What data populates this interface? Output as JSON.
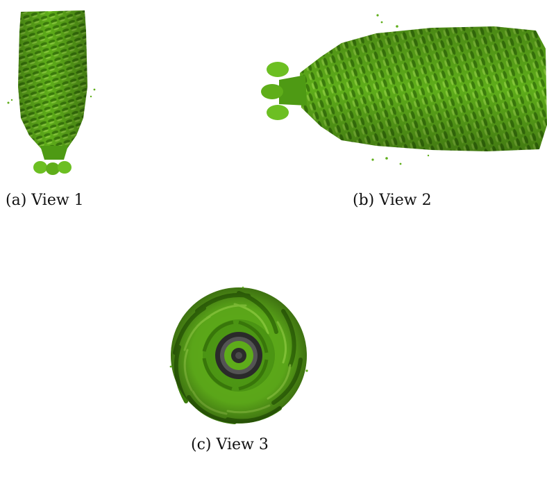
{
  "figure": {
    "panels": [
      {
        "id": "a",
        "caption": "(a) View 1",
        "view": "side view of helical filament (vertical)"
      },
      {
        "id": "b",
        "caption": "(b) View 2",
        "view": "side view of helical filament (horizontal)"
      },
      {
        "id": "c",
        "caption": "(c) View 3",
        "view": "top-down view of helical filament"
      }
    ],
    "colors": {
      "surface": "#5fae1a",
      "surface_dark": "#3a7a0a",
      "surface_light": "#8fd040",
      "core": "#2b2b2b",
      "background": "#ffffff"
    }
  }
}
